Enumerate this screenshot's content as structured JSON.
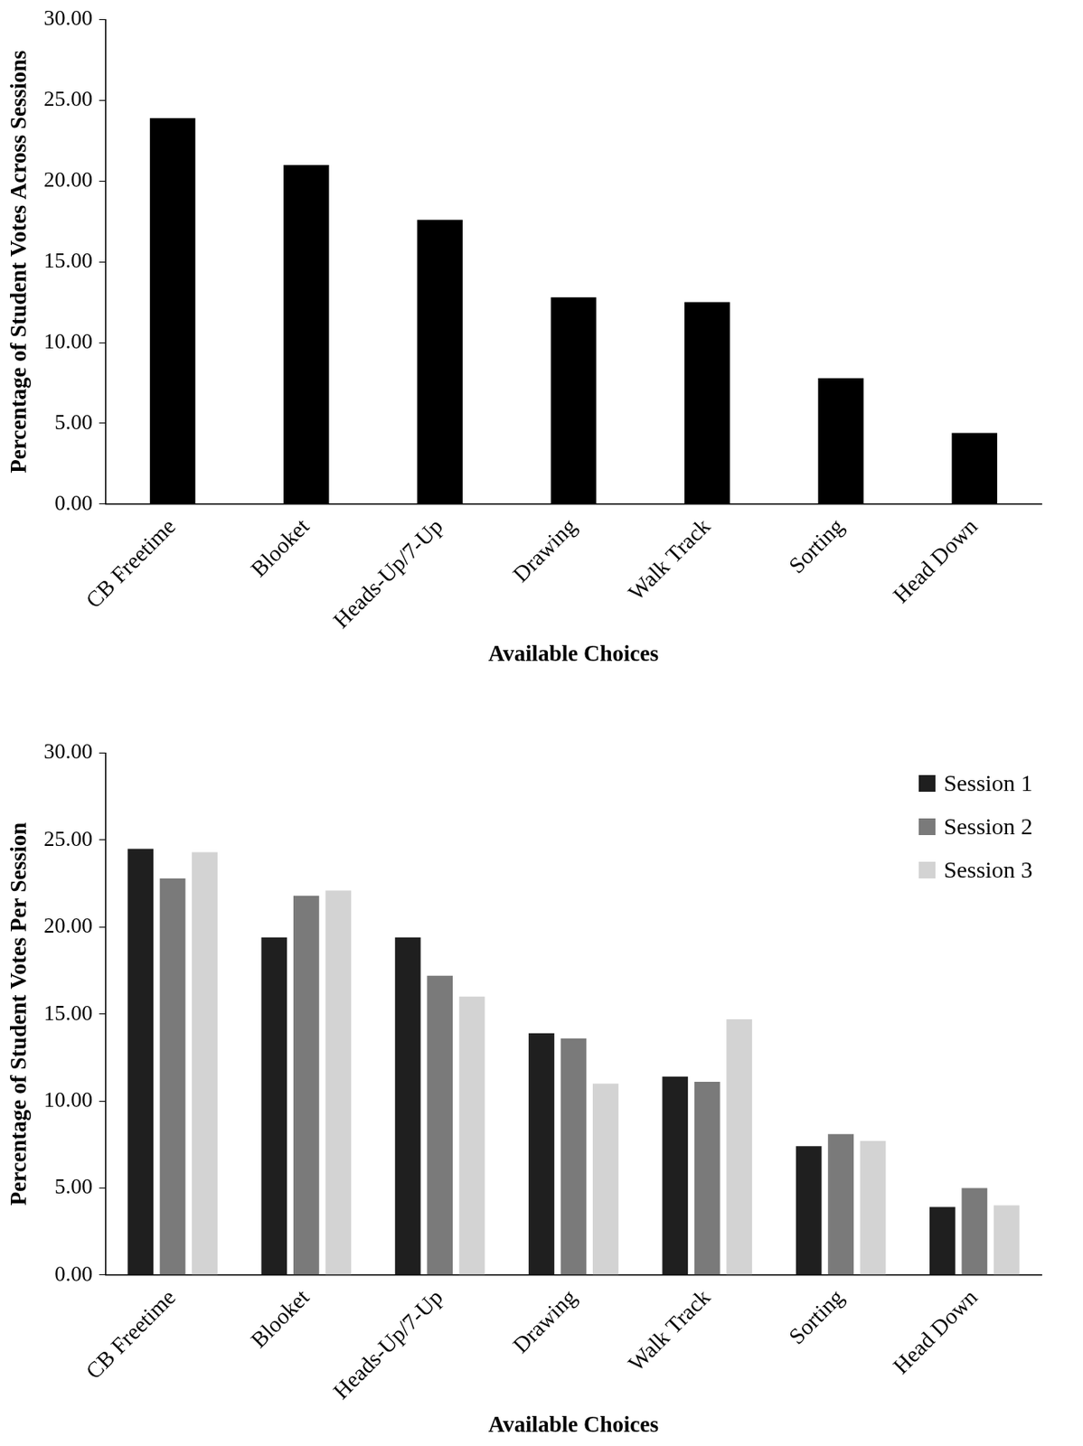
{
  "chart_data": [
    {
      "type": "bar",
      "x_label": "Available Choices",
      "y_label": "Percentage of Student Votes Across Sessions",
      "categories": [
        "CB Freetime",
        "Blooket",
        "Heads-Up/7-Up",
        "Drawing",
        "Walk Track",
        "Sorting",
        "Head Down"
      ],
      "values": [
        23.9,
        21.0,
        17.6,
        12.8,
        12.5,
        7.8,
        4.4
      ],
      "color": "#000000",
      "ylim": [
        0,
        30
      ],
      "yticks": [
        {
          "value": 0,
          "label": "0.00"
        },
        {
          "value": 5,
          "label": "5.00"
        },
        {
          "value": 10,
          "label": "10.00"
        },
        {
          "value": 15,
          "label": "15.00"
        },
        {
          "value": 20,
          "label": "20.00"
        },
        {
          "value": 25,
          "label": "25.00"
        },
        {
          "value": 30,
          "label": "30.00"
        }
      ],
      "grid": false
    },
    {
      "type": "bar",
      "x_label": "Available Choices",
      "y_label": "Percentage of Student Votes Per Session",
      "categories": [
        "CB Freetime",
        "Blooket",
        "Heads-Up/7-Up",
        "Drawing",
        "Walk Track",
        "Sorting",
        "Head Down"
      ],
      "series": [
        {
          "name": "Session 1",
          "color": "#1f1f1f",
          "values": [
            24.5,
            19.4,
            19.4,
            13.9,
            11.4,
            7.4,
            3.9
          ]
        },
        {
          "name": "Session 2",
          "color": "#7a7a7a",
          "values": [
            22.8,
            21.8,
            17.2,
            13.6,
            11.1,
            8.1,
            5.0
          ]
        },
        {
          "name": "Session 3",
          "color": "#d3d3d3",
          "values": [
            24.3,
            22.1,
            16.0,
            11.0,
            14.7,
            7.7,
            4.0
          ]
        }
      ],
      "ylim": [
        0,
        30
      ],
      "yticks": [
        {
          "value": 0,
          "label": "0.00"
        },
        {
          "value": 5,
          "label": "5.00"
        },
        {
          "value": 10,
          "label": "10.00"
        },
        {
          "value": 15,
          "label": "15.00"
        },
        {
          "value": 20,
          "label": "20.00"
        },
        {
          "value": 25,
          "label": "25.00"
        },
        {
          "value": 30,
          "label": "30.00"
        }
      ],
      "grid": false,
      "legend": "upper right"
    }
  ]
}
